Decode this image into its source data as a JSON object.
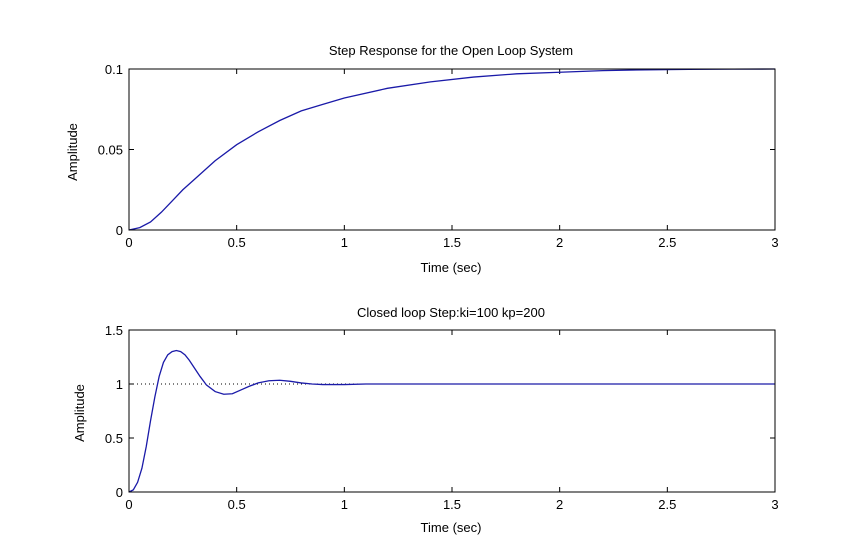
{
  "chart_data": [
    {
      "type": "line",
      "title": "Step Response for the Open Loop System",
      "xlabel": "Time (sec)",
      "ylabel": "Amplitude",
      "xlim": [
        0,
        3
      ],
      "ylim": [
        0,
        0.1
      ],
      "xticks": [
        0,
        0.5,
        1,
        1.5,
        2,
        2.5,
        3
      ],
      "xtick_labels": [
        "0",
        "0.5",
        "1",
        "1.5",
        "2",
        "2.5",
        "3"
      ],
      "yticks": [
        0,
        0.05,
        0.1
      ],
      "ytick_labels": [
        "0",
        "0.05",
        "0.1"
      ],
      "grid": false,
      "series": [
        {
          "color": "#1a1aa8",
          "x": [
            0,
            0.05,
            0.1,
            0.15,
            0.2,
            0.25,
            0.3,
            0.4,
            0.5,
            0.6,
            0.7,
            0.8,
            0.9,
            1.0,
            1.2,
            1.4,
            1.6,
            1.8,
            2.0,
            2.2,
            2.4,
            2.6,
            2.8,
            3.0
          ],
          "y": [
            0,
            0.0015,
            0.005,
            0.011,
            0.018,
            0.025,
            0.031,
            0.043,
            0.053,
            0.061,
            0.068,
            0.074,
            0.078,
            0.082,
            0.088,
            0.092,
            0.095,
            0.097,
            0.098,
            0.099,
            0.0995,
            0.0998,
            0.0999,
            0.1
          ]
        }
      ]
    },
    {
      "type": "line",
      "title": "Closed loop Step:ki=100 kp=200",
      "xlabel": "Time (sec)",
      "ylabel": "Amplitude",
      "xlim": [
        0,
        3
      ],
      "ylim": [
        0,
        1.5
      ],
      "xticks": [
        0,
        0.5,
        1,
        1.5,
        2,
        2.5,
        3
      ],
      "xtick_labels": [
        "0",
        "0.5",
        "1",
        "1.5",
        "2",
        "2.5",
        "3"
      ],
      "yticks": [
        0,
        0.5,
        1,
        1.5
      ],
      "ytick_labels": [
        "0",
        "0.5",
        "1",
        "1.5"
      ],
      "grid": false,
      "reference_line": {
        "y": 1,
        "style": "dotted",
        "color": "#000000"
      },
      "series": [
        {
          "color": "#1a1aa8",
          "x": [
            0,
            0.02,
            0.04,
            0.06,
            0.08,
            0.1,
            0.12,
            0.14,
            0.16,
            0.18,
            0.2,
            0.22,
            0.24,
            0.26,
            0.28,
            0.3,
            0.33,
            0.36,
            0.4,
            0.44,
            0.48,
            0.52,
            0.56,
            0.6,
            0.65,
            0.7,
            0.75,
            0.8,
            0.85,
            0.9,
            1.0,
            1.1,
            1.2,
            1.4,
            1.6,
            1.8,
            2.0,
            2.2,
            2.4,
            2.6,
            2.8,
            3.0
          ],
          "y": [
            0,
            0.02,
            0.09,
            0.22,
            0.42,
            0.66,
            0.88,
            1.07,
            1.2,
            1.27,
            1.3,
            1.31,
            1.3,
            1.27,
            1.22,
            1.16,
            1.07,
            0.99,
            0.93,
            0.905,
            0.91,
            0.945,
            0.98,
            1.01,
            1.03,
            1.035,
            1.025,
            1.01,
            1.0,
            0.995,
            0.995,
            1.0,
            1.0,
            1.0,
            1.0,
            1.0,
            1.0,
            1.0,
            1.0,
            1.0,
            1.0,
            1.0
          ]
        }
      ]
    }
  ]
}
